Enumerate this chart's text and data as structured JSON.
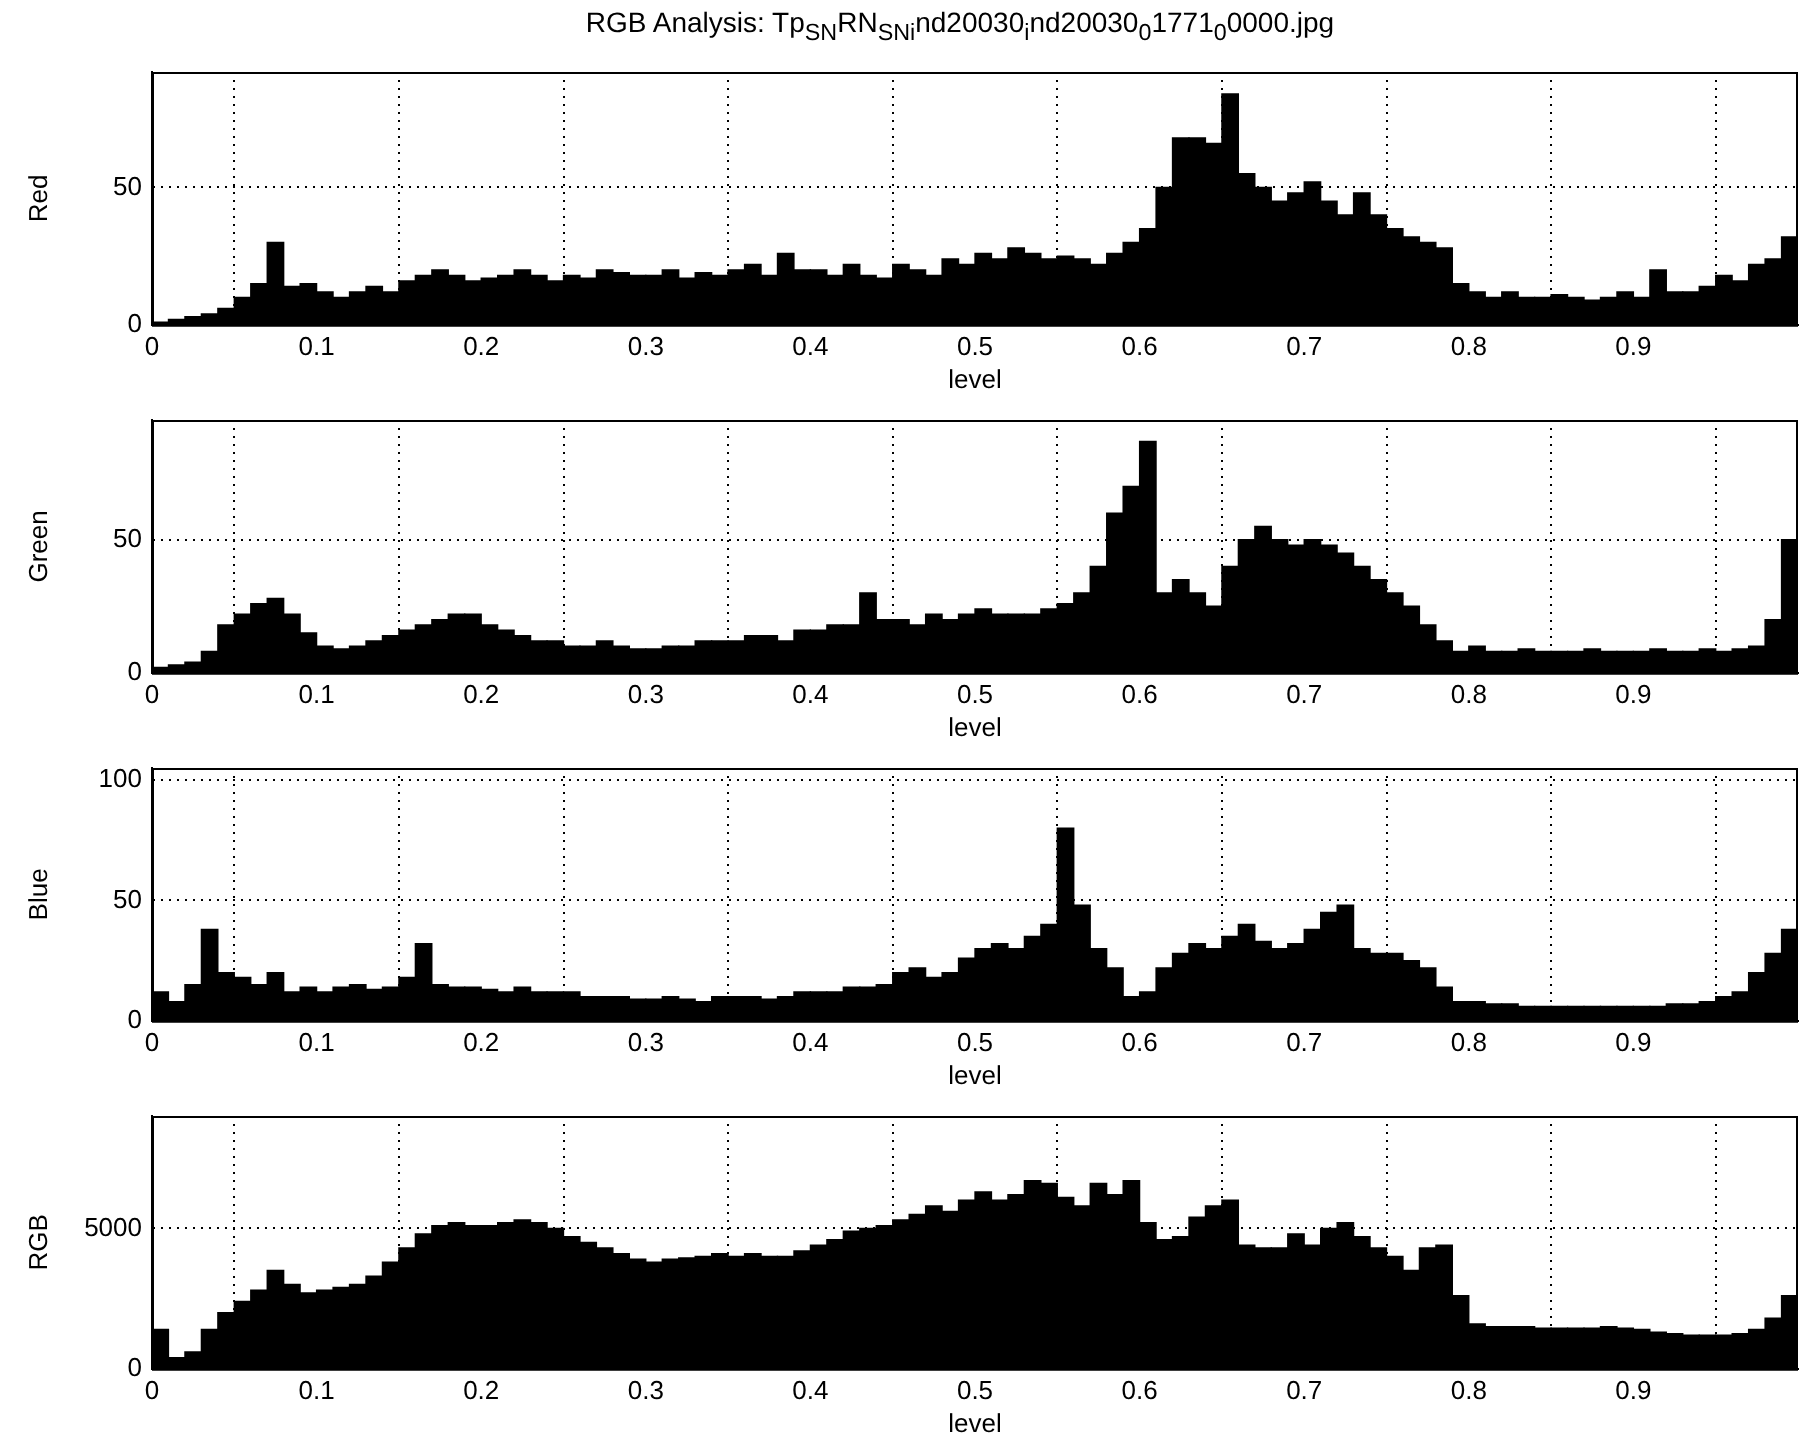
{
  "chart_data": [
    {
      "type": "histogram",
      "title": "RGB Analysis: Tp$_{SN}$RN$_{SNi}$nd20030$_{i}$nd20030$_{0}$1771$_{0}$0000.jpg",
      "xlabel": "level",
      "ylabel": "Red",
      "color": "#000000",
      "grid": true,
      "xlim": [
        0,
        1
      ],
      "xticks": [
        0,
        0.1,
        0.2,
        0.3,
        0.4,
        0.5,
        0.6,
        0.7,
        0.8,
        0.9
      ],
      "ylim": [
        0,
        92
      ],
      "yticks": [
        0,
        50
      ],
      "bins": [
        0,
        0.01,
        0.02,
        0.03,
        0.04,
        0.05,
        0.06,
        0.07,
        0.08,
        0.09,
        0.1,
        0.11,
        0.12,
        0.13,
        0.14,
        0.15,
        0.16,
        0.17,
        0.18,
        0.19,
        0.2,
        0.21,
        0.22,
        0.23,
        0.24,
        0.25,
        0.26,
        0.27,
        0.28,
        0.29,
        0.3,
        0.31,
        0.32,
        0.33,
        0.34,
        0.35,
        0.36,
        0.37,
        0.38,
        0.39,
        0.4,
        0.41,
        0.42,
        0.43,
        0.44,
        0.45,
        0.46,
        0.47,
        0.48,
        0.49,
        0.5,
        0.51,
        0.52,
        0.53,
        0.54,
        0.55,
        0.56,
        0.57,
        0.58,
        0.59,
        0.6,
        0.61,
        0.62,
        0.63,
        0.64,
        0.65,
        0.66,
        0.67,
        0.68,
        0.69,
        0.7,
        0.71,
        0.72,
        0.73,
        0.74,
        0.75,
        0.76,
        0.77,
        0.78,
        0.79,
        0.8,
        0.81,
        0.82,
        0.83,
        0.84,
        0.85,
        0.86,
        0.87,
        0.88,
        0.89,
        0.9,
        0.91,
        0.92,
        0.93,
        0.94,
        0.95,
        0.96,
        0.97,
        0.98,
        0.99,
        1
      ],
      "values": [
        1,
        2,
        3,
        4,
        6,
        10,
        15,
        30,
        14,
        15,
        12,
        10,
        12,
        14,
        12,
        16,
        18,
        20,
        18,
        16,
        17,
        18,
        20,
        18,
        16,
        18,
        17,
        20,
        19,
        18,
        18,
        20,
        17,
        19,
        18,
        20,
        22,
        18,
        26,
        20,
        20,
        18,
        22,
        18,
        17,
        22,
        20,
        18,
        24,
        22,
        26,
        24,
        28,
        26,
        24,
        25,
        24,
        22,
        26,
        30,
        35,
        50,
        68,
        68,
        66,
        84,
        55,
        50,
        45,
        48,
        52,
        45,
        40,
        48,
        40,
        35,
        32,
        30,
        28,
        15,
        12,
        10,
        12,
        10,
        10,
        11,
        10,
        9,
        10,
        12,
        10,
        20,
        12,
        12,
        14,
        18,
        16,
        22,
        24,
        32
      ]
    },
    {
      "type": "histogram",
      "xlabel": "level",
      "ylabel": "Green",
      "color": "#000000",
      "grid": true,
      "xlim": [
        0,
        1
      ],
      "xticks": [
        0,
        0.1,
        0.2,
        0.3,
        0.4,
        0.5,
        0.6,
        0.7,
        0.8,
        0.9
      ],
      "ylim": [
        0,
        95
      ],
      "yticks": [
        0,
        50
      ],
      "bins": [
        0,
        0.01,
        0.02,
        0.03,
        0.04,
        0.05,
        0.06,
        0.07,
        0.08,
        0.09,
        0.1,
        0.11,
        0.12,
        0.13,
        0.14,
        0.15,
        0.16,
        0.17,
        0.18,
        0.19,
        0.2,
        0.21,
        0.22,
        0.23,
        0.24,
        0.25,
        0.26,
        0.27,
        0.28,
        0.29,
        0.3,
        0.31,
        0.32,
        0.33,
        0.34,
        0.35,
        0.36,
        0.37,
        0.38,
        0.39,
        0.4,
        0.41,
        0.42,
        0.43,
        0.44,
        0.45,
        0.46,
        0.47,
        0.48,
        0.49,
        0.5,
        0.51,
        0.52,
        0.53,
        0.54,
        0.55,
        0.56,
        0.57,
        0.58,
        0.59,
        0.6,
        0.61,
        0.62,
        0.63,
        0.64,
        0.65,
        0.66,
        0.67,
        0.68,
        0.69,
        0.7,
        0.71,
        0.72,
        0.73,
        0.74,
        0.75,
        0.76,
        0.77,
        0.78,
        0.79,
        0.8,
        0.81,
        0.82,
        0.83,
        0.84,
        0.85,
        0.86,
        0.87,
        0.88,
        0.89,
        0.9,
        0.91,
        0.92,
        0.93,
        0.94,
        0.95,
        0.96,
        0.97,
        0.98,
        0.99,
        1
      ],
      "values": [
        2,
        3,
        4,
        8,
        18,
        22,
        26,
        28,
        22,
        15,
        10,
        9,
        10,
        12,
        14,
        16,
        18,
        20,
        22,
        22,
        18,
        16,
        14,
        12,
        12,
        10,
        10,
        12,
        10,
        9,
        9,
        10,
        10,
        12,
        12,
        12,
        14,
        14,
        12,
        16,
        16,
        18,
        18,
        30,
        20,
        20,
        18,
        22,
        20,
        22,
        24,
        22,
        22,
        22,
        24,
        26,
        30,
        40,
        60,
        70,
        87,
        30,
        35,
        30,
        25,
        40,
        50,
        55,
        50,
        48,
        50,
        48,
        45,
        40,
        35,
        30,
        25,
        18,
        12,
        8,
        10,
        8,
        8,
        9,
        8,
        8,
        8,
        9,
        8,
        8,
        8,
        9,
        8,
        8,
        9,
        8,
        9,
        10,
        20,
        50
      ]
    },
    {
      "type": "histogram",
      "xlabel": "level",
      "ylabel": "Blue",
      "color": "#000000",
      "grid": true,
      "xlim": [
        0,
        1
      ],
      "xticks": [
        0,
        0.1,
        0.2,
        0.3,
        0.4,
        0.5,
        0.6,
        0.7,
        0.8,
        0.9
      ],
      "ylim": [
        0,
        105
      ],
      "yticks": [
        0,
        50,
        100
      ],
      "bins": [
        0,
        0.01,
        0.02,
        0.03,
        0.04,
        0.05,
        0.06,
        0.07,
        0.08,
        0.09,
        0.1,
        0.11,
        0.12,
        0.13,
        0.14,
        0.15,
        0.16,
        0.17,
        0.18,
        0.19,
        0.2,
        0.21,
        0.22,
        0.23,
        0.24,
        0.25,
        0.26,
        0.27,
        0.28,
        0.29,
        0.3,
        0.31,
        0.32,
        0.33,
        0.34,
        0.35,
        0.36,
        0.37,
        0.38,
        0.39,
        0.4,
        0.41,
        0.42,
        0.43,
        0.44,
        0.45,
        0.46,
        0.47,
        0.48,
        0.49,
        0.5,
        0.51,
        0.52,
        0.53,
        0.54,
        0.55,
        0.56,
        0.57,
        0.58,
        0.59,
        0.6,
        0.61,
        0.62,
        0.63,
        0.64,
        0.65,
        0.66,
        0.67,
        0.68,
        0.69,
        0.7,
        0.71,
        0.72,
        0.73,
        0.74,
        0.75,
        0.76,
        0.77,
        0.78,
        0.79,
        0.8,
        0.81,
        0.82,
        0.83,
        0.84,
        0.85,
        0.86,
        0.87,
        0.88,
        0.89,
        0.9,
        0.91,
        0.92,
        0.93,
        0.94,
        0.95,
        0.96,
        0.97,
        0.98,
        0.99,
        1
      ],
      "values": [
        12,
        8,
        15,
        38,
        20,
        18,
        15,
        20,
        12,
        14,
        12,
        14,
        15,
        13,
        14,
        18,
        32,
        15,
        14,
        14,
        13,
        12,
        14,
        12,
        12,
        12,
        10,
        10,
        10,
        9,
        9,
        10,
        9,
        8,
        10,
        10,
        10,
        9,
        10,
        12,
        12,
        12,
        14,
        14,
        15,
        20,
        22,
        18,
        20,
        26,
        30,
        32,
        30,
        35,
        40,
        80,
        48,
        30,
        22,
        10,
        12,
        22,
        28,
        32,
        30,
        35,
        40,
        33,
        30,
        32,
        38,
        45,
        48,
        30,
        28,
        28,
        25,
        22,
        14,
        8,
        8,
        7,
        7,
        6,
        6,
        6,
        6,
        6,
        6,
        6,
        6,
        6,
        7,
        7,
        8,
        10,
        12,
        20,
        28,
        38
      ]
    },
    {
      "type": "histogram",
      "xlabel": "level",
      "ylabel": "RGB",
      "color": "#000000",
      "grid": true,
      "xlim": [
        0,
        1
      ],
      "xticks": [
        0,
        0.1,
        0.2,
        0.3,
        0.4,
        0.5,
        0.6,
        0.7,
        0.8,
        0.9
      ],
      "ylim": [
        0,
        9000
      ],
      "yticks": [
        0,
        5000
      ],
      "bins": [
        0,
        0.01,
        0.02,
        0.03,
        0.04,
        0.05,
        0.06,
        0.07,
        0.08,
        0.09,
        0.1,
        0.11,
        0.12,
        0.13,
        0.14,
        0.15,
        0.16,
        0.17,
        0.18,
        0.19,
        0.2,
        0.21,
        0.22,
        0.23,
        0.24,
        0.25,
        0.26,
        0.27,
        0.28,
        0.29,
        0.3,
        0.31,
        0.32,
        0.33,
        0.34,
        0.35,
        0.36,
        0.37,
        0.38,
        0.39,
        0.4,
        0.41,
        0.42,
        0.43,
        0.44,
        0.45,
        0.46,
        0.47,
        0.48,
        0.49,
        0.5,
        0.51,
        0.52,
        0.53,
        0.54,
        0.55,
        0.56,
        0.57,
        0.58,
        0.59,
        0.6,
        0.61,
        0.62,
        0.63,
        0.64,
        0.65,
        0.66,
        0.67,
        0.68,
        0.69,
        0.7,
        0.71,
        0.72,
        0.73,
        0.74,
        0.75,
        0.76,
        0.77,
        0.78,
        0.79,
        0.8,
        0.81,
        0.82,
        0.83,
        0.84,
        0.85,
        0.86,
        0.87,
        0.88,
        0.89,
        0.9,
        0.91,
        0.92,
        0.93,
        0.94,
        0.95,
        0.96,
        0.97,
        0.98,
        0.99,
        1
      ],
      "values": [
        1400,
        400,
        600,
        1400,
        2000,
        2400,
        2800,
        3500,
        3000,
        2700,
        2800,
        2900,
        3000,
        3300,
        3800,
        4300,
        4800,
        5100,
        5200,
        5100,
        5100,
        5200,
        5300,
        5200,
        5000,
        4700,
        4500,
        4300,
        4100,
        3900,
        3800,
        3900,
        3950,
        4000,
        4100,
        4000,
        4100,
        4000,
        4000,
        4200,
        4400,
        4600,
        4900,
        5000,
        5100,
        5300,
        5500,
        5800,
        5600,
        6000,
        6300,
        6000,
        6200,
        6700,
        6600,
        6100,
        5800,
        6600,
        6200,
        6700,
        5200,
        4600,
        4700,
        5400,
        5800,
        6000,
        4400,
        4300,
        4300,
        4800,
        4400,
        5000,
        5200,
        4700,
        4300,
        4000,
        3500,
        4300,
        4400,
        2600,
        1600,
        1500,
        1500,
        1500,
        1450,
        1450,
        1450,
        1450,
        1500,
        1450,
        1400,
        1300,
        1250,
        1200,
        1200,
        1200,
        1250,
        1400,
        1800,
        2600
      ]
    }
  ]
}
